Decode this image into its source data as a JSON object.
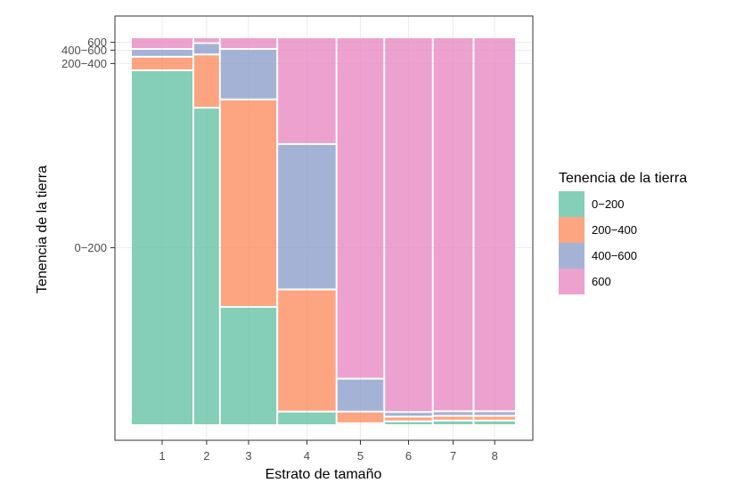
{
  "chart_data": {
    "type": "mosaic",
    "xlabel": "Estrato de tamaño",
    "ylabel": "Tenencia de la tierra",
    "categories": [
      "1",
      "2",
      "3",
      "4",
      "5",
      "6",
      "7",
      "8"
    ],
    "column_widths": [
      0.162,
      0.069,
      0.149,
      0.154,
      0.124,
      0.126,
      0.106,
      0.11
    ],
    "series": [
      {
        "name": "0−200",
        "color": "#66C2A5",
        "values": [
          0.915,
          0.835,
          0.305,
          0.035,
          0.005,
          0.01,
          0.012,
          0.012
        ]
      },
      {
        "name": "200−400",
        "color": "#FC8D62",
        "values": [
          0.035,
          0.14,
          0.535,
          0.315,
          0.03,
          0.012,
          0.012,
          0.012
        ]
      },
      {
        "name": "400−600",
        "color": "#8DA0CB",
        "values": [
          0.02,
          0.03,
          0.13,
          0.375,
          0.085,
          0.012,
          0.012,
          0.012
        ]
      },
      {
        "name": "600",
        "color": "#E78AC3",
        "values": [
          0.03,
          0.015,
          0.03,
          0.275,
          0.88,
          0.966,
          0.964,
          0.964
        ]
      }
    ],
    "y_tick_labels": [
      "0−200",
      "200−400",
      "400−600",
      "600"
    ],
    "legend": {
      "title": "Tenencia de la tierra",
      "position": "right"
    },
    "grid": true
  }
}
